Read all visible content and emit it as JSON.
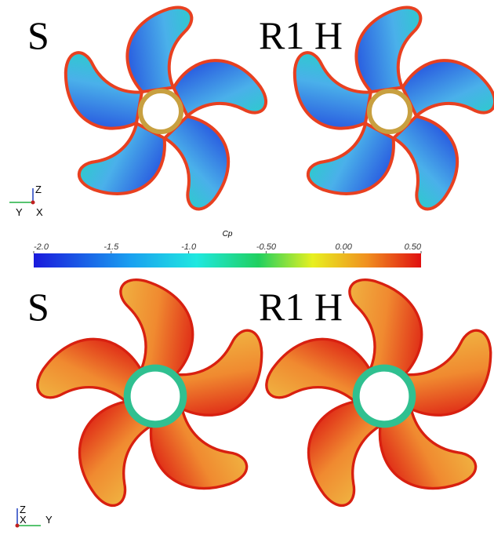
{
  "panels": [
    {
      "label": "S"
    },
    {
      "label": "R1 H"
    },
    {
      "label": "S"
    },
    {
      "label": "R1 H"
    }
  ],
  "axes_triads": [
    {
      "up": "Z",
      "left": "Y",
      "right": "X"
    },
    {
      "up": "Z",
      "left": "X",
      "right": "Y"
    }
  ],
  "colorbar": {
    "title": "Cp",
    "range": [
      -2.0,
      0.5
    ],
    "ticks": [
      {
        "value": -2.0,
        "label": "-2.0"
      },
      {
        "value": -1.5,
        "label": "-1.5"
      },
      {
        "value": -1.0,
        "label": "-1.0"
      },
      {
        "value": -0.5,
        "label": "-0.50"
      },
      {
        "value": 0,
        "label": "0.00"
      },
      {
        "value": 0.5,
        "label": "0.50"
      }
    ]
  }
}
